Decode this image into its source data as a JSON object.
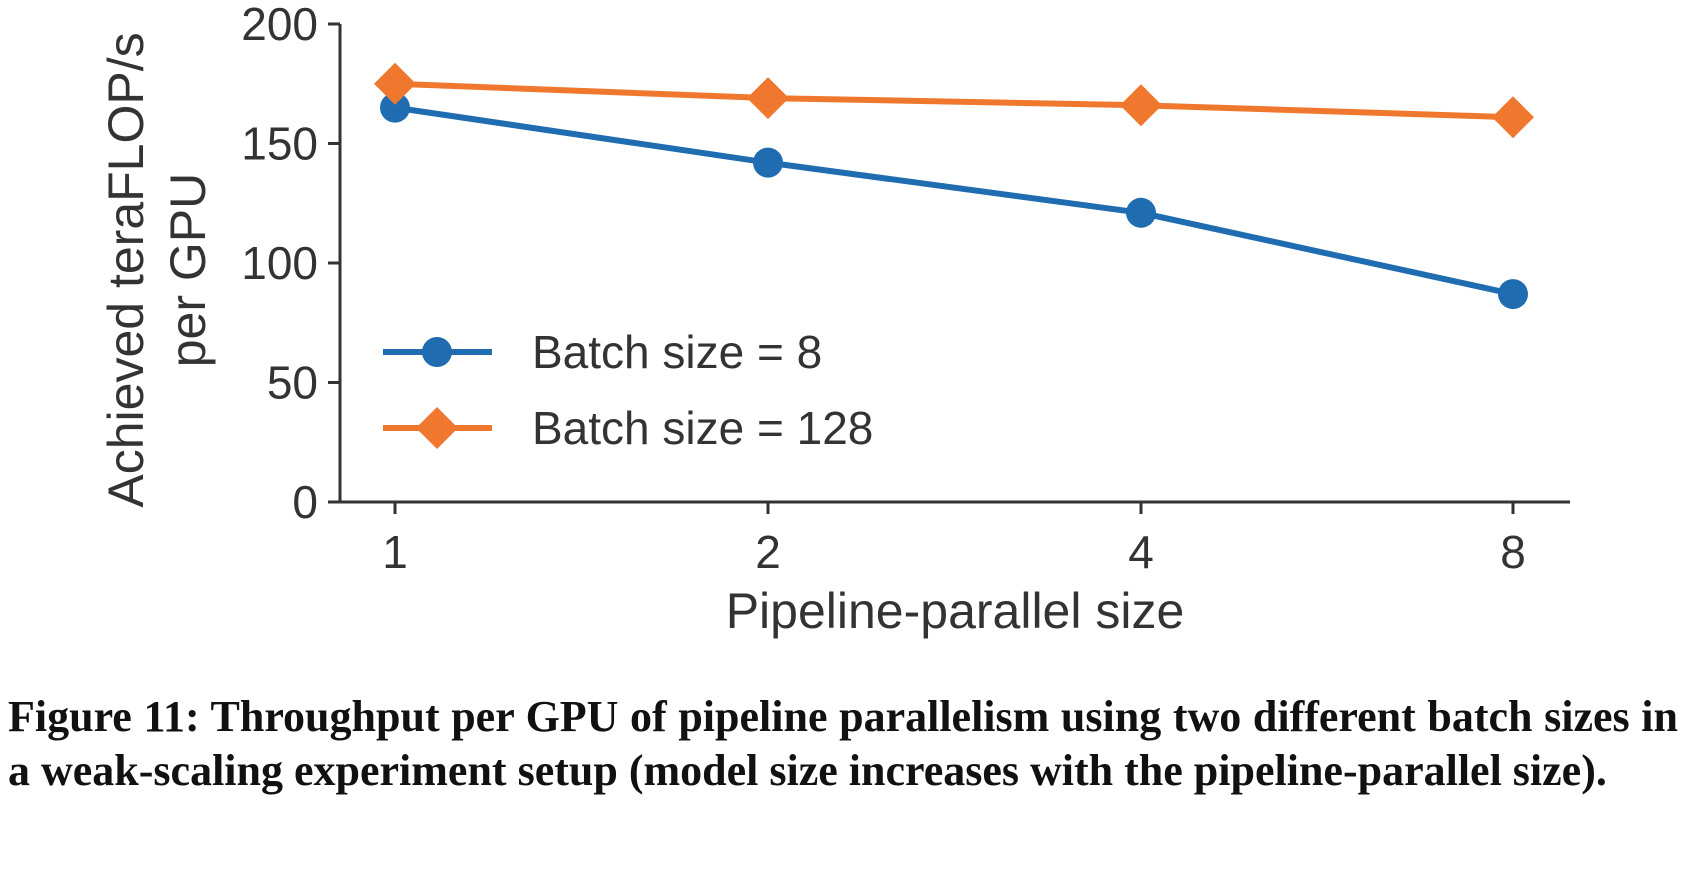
{
  "chart_data": {
    "type": "line",
    "categories": [
      "1",
      "2",
      "4",
      "8"
    ],
    "xlabel": "Pipeline-parallel size",
    "ylabel_lines": [
      "Achieved teraFLOP/s",
      "per GPU"
    ],
    "ylim": [
      0,
      200
    ],
    "yticks": [
      0,
      50,
      100,
      150,
      200
    ],
    "grid": false,
    "legend_position": "lower-left",
    "series": [
      {
        "name": "Batch size = 8",
        "values": [
          165,
          142,
          121,
          87
        ],
        "color": "#1f6cb0",
        "marker": "circle"
      },
      {
        "name": "Batch size = 128",
        "values": [
          175,
          169,
          166,
          161
        ],
        "color": "#f0782e",
        "marker": "diamond"
      }
    ]
  },
  "caption": "Figure 11: Throughput per GPU of pipeline parallelism using two different batch sizes in a weak-scaling experiment setup (model size increases with the pipeline-parallel size)."
}
